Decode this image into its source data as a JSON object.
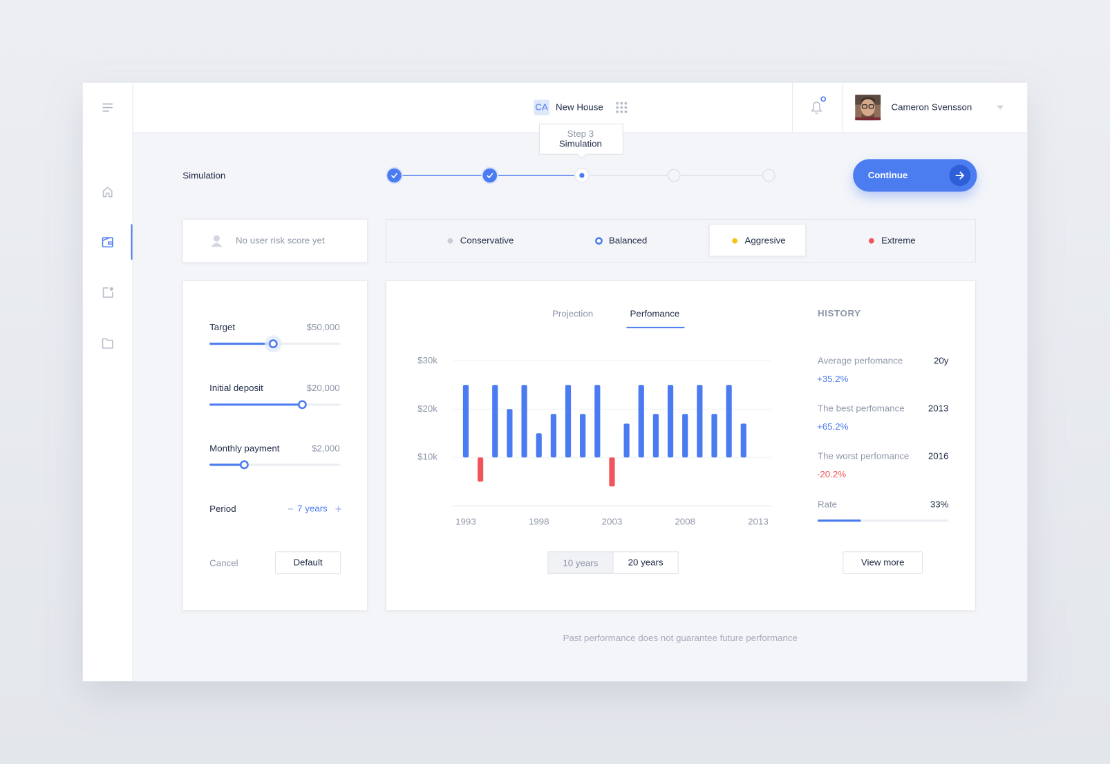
{
  "header": {
    "project_initials": "CA",
    "project_name": "New House",
    "user_name": "Cameron Svensson"
  },
  "page_title": "Simulation",
  "stepper": {
    "tooltip_step": "Step 3",
    "tooltip_title": "Simulation"
  },
  "continue_button": "Continue",
  "risk_score": "No user risk score yet",
  "risk_profiles": [
    {
      "name": "Conservative",
      "color": "#c8ccd4"
    },
    {
      "name": "Balanced",
      "color": "#4b7bf0"
    },
    {
      "name": "Aggresive",
      "color": "#f5c518"
    },
    {
      "name": "Extreme",
      "color": "#f2545b"
    }
  ],
  "settings": {
    "fields": [
      {
        "label": "Target",
        "value": "$50,000"
      },
      {
        "label": "Initial deposit",
        "value": "$20,000"
      },
      {
        "label": "Monthly payment",
        "value": "$2,000"
      }
    ],
    "period": {
      "label": "Period",
      "value": "7 years"
    },
    "cancel": "Cancel",
    "default": "Default"
  },
  "chart_tabs": [
    "Projection",
    "Perfomance"
  ],
  "chart_data": {
    "type": "bar",
    "x": [
      1993,
      1994,
      1995,
      1996,
      1997,
      1998,
      1999,
      2000,
      2001,
      2002,
      2003,
      2004,
      2005,
      2006,
      2007,
      2008,
      2009,
      2010,
      2011,
      2012
    ],
    "values": [
      25000,
      5000,
      25000,
      20000,
      25000,
      15000,
      19000,
      25000,
      19000,
      25000,
      4000,
      17000,
      25000,
      19000,
      25000,
      19000,
      25000,
      19000,
      25000,
      17000
    ],
    "color": "#4b7bf0",
    "below_color": "#f2545b",
    "xlim": [
      1993,
      2013
    ],
    "xticks": [
      1993,
      1998,
      2003,
      2008,
      2013
    ],
    "ylim": [
      0,
      30000
    ],
    "yticks": [
      {
        "value": 10000,
        "label": "$10k"
      },
      {
        "value": 20000,
        "label": "$20k"
      },
      {
        "value": 30000,
        "label": "$30k"
      }
    ],
    "grid": true
  },
  "range_toggle": [
    "10 years",
    "20 years"
  ],
  "history": {
    "title": "HISTORY",
    "items": [
      {
        "label": "Average perfomance",
        "period": "20y",
        "value": "+35.2%",
        "color": "#4b7bf0"
      },
      {
        "label": "The best perfomance",
        "period": "2013",
        "value": "+65.2%",
        "color": "#4b7bf0"
      },
      {
        "label": "The worst perfomance",
        "period": "2016",
        "value": "-20.2%",
        "color": "#f2545b"
      }
    ],
    "rate": {
      "label": "Rate",
      "value": 33,
      "value_label": "33%"
    },
    "button": "View more"
  },
  "disclaimer": "Past performance does not guarantee future performance"
}
